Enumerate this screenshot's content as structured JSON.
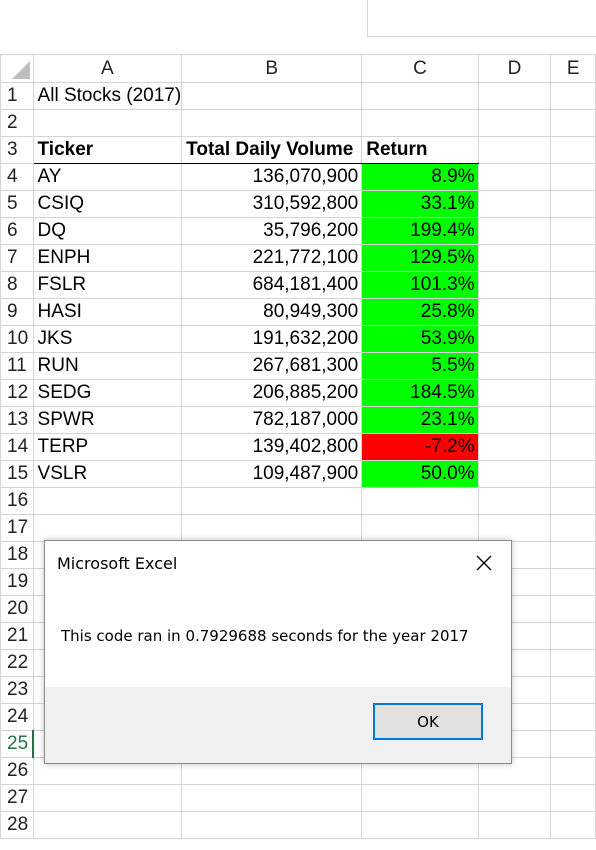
{
  "columns": [
    "A",
    "B",
    "C",
    "D",
    "E"
  ],
  "rows": [
    {
      "num": "1",
      "a": "All Stocks (2017)",
      "b": "",
      "c": "",
      "c_fill": ""
    },
    {
      "num": "2",
      "a": "",
      "b": "",
      "c": "",
      "c_fill": ""
    },
    {
      "num": "3",
      "a": "Ticker",
      "b": "Total Daily Volume",
      "c": "Return",
      "c_fill": "",
      "header": true
    },
    {
      "num": "4",
      "a": "AY",
      "b": "136,070,900",
      "c": "8.9%",
      "c_fill": "#00ff00"
    },
    {
      "num": "5",
      "a": "CSIQ",
      "b": "310,592,800",
      "c": "33.1%",
      "c_fill": "#00ff00"
    },
    {
      "num": "6",
      "a": "DQ",
      "b": "35,796,200",
      "c": "199.4%",
      "c_fill": "#00ff00"
    },
    {
      "num": "7",
      "a": "ENPH",
      "b": "221,772,100",
      "c": "129.5%",
      "c_fill": "#00ff00"
    },
    {
      "num": "8",
      "a": "FSLR",
      "b": "684,181,400",
      "c": "101.3%",
      "c_fill": "#00ff00"
    },
    {
      "num": "9",
      "a": "HASI",
      "b": "80,949,300",
      "c": "25.8%",
      "c_fill": "#00ff00"
    },
    {
      "num": "10",
      "a": "JKS",
      "b": "191,632,200",
      "c": "53.9%",
      "c_fill": "#00ff00"
    },
    {
      "num": "11",
      "a": "RUN",
      "b": "267,681,300",
      "c": "5.5%",
      "c_fill": "#00ff00"
    },
    {
      "num": "12",
      "a": "SEDG",
      "b": "206,885,200",
      "c": "184.5%",
      "c_fill": "#00ff00"
    },
    {
      "num": "13",
      "a": "SPWR",
      "b": "782,187,000",
      "c": "23.1%",
      "c_fill": "#00ff00"
    },
    {
      "num": "14",
      "a": "TERP",
      "b": "139,402,800",
      "c": "-7.2%",
      "c_fill": "#ff0000"
    },
    {
      "num": "15",
      "a": "VSLR",
      "b": "109,487,900",
      "c": "50.0%",
      "c_fill": "#00ff00"
    },
    {
      "num": "16",
      "a": "",
      "b": "",
      "c": "",
      "c_fill": ""
    },
    {
      "num": "17",
      "a": "",
      "b": "",
      "c": "",
      "c_fill": ""
    },
    {
      "num": "18",
      "a": "",
      "b": "",
      "c": "",
      "c_fill": ""
    },
    {
      "num": "19",
      "a": "",
      "b": "",
      "c": "",
      "c_fill": ""
    },
    {
      "num": "20",
      "a": "",
      "b": "",
      "c": "",
      "c_fill": ""
    },
    {
      "num": "21",
      "a": "",
      "b": "",
      "c": "",
      "c_fill": ""
    },
    {
      "num": "22",
      "a": "",
      "b": "",
      "c": "",
      "c_fill": ""
    },
    {
      "num": "23",
      "a": "",
      "b": "",
      "c": "",
      "c_fill": ""
    },
    {
      "num": "24",
      "a": "",
      "b": "",
      "c": "",
      "c_fill": ""
    },
    {
      "num": "25",
      "a": "",
      "b": "",
      "c": "",
      "c_fill": "",
      "selected": true
    },
    {
      "num": "26",
      "a": "",
      "b": "",
      "c": "",
      "c_fill": ""
    },
    {
      "num": "27",
      "a": "",
      "b": "",
      "c": "",
      "c_fill": ""
    },
    {
      "num": "28",
      "a": "",
      "b": "",
      "c": "",
      "c_fill": ""
    }
  ],
  "colors": {
    "positive_fill": "#00ff00",
    "negative_fill": "#ff0000",
    "selected_row_header": "#217346",
    "dialog_button_border": "#0078d7"
  },
  "dialog": {
    "title": "Microsoft Excel",
    "message": "This code ran in 0.7929688 seconds for the year 2017",
    "ok_label": "OK",
    "close_icon": "close-icon"
  }
}
